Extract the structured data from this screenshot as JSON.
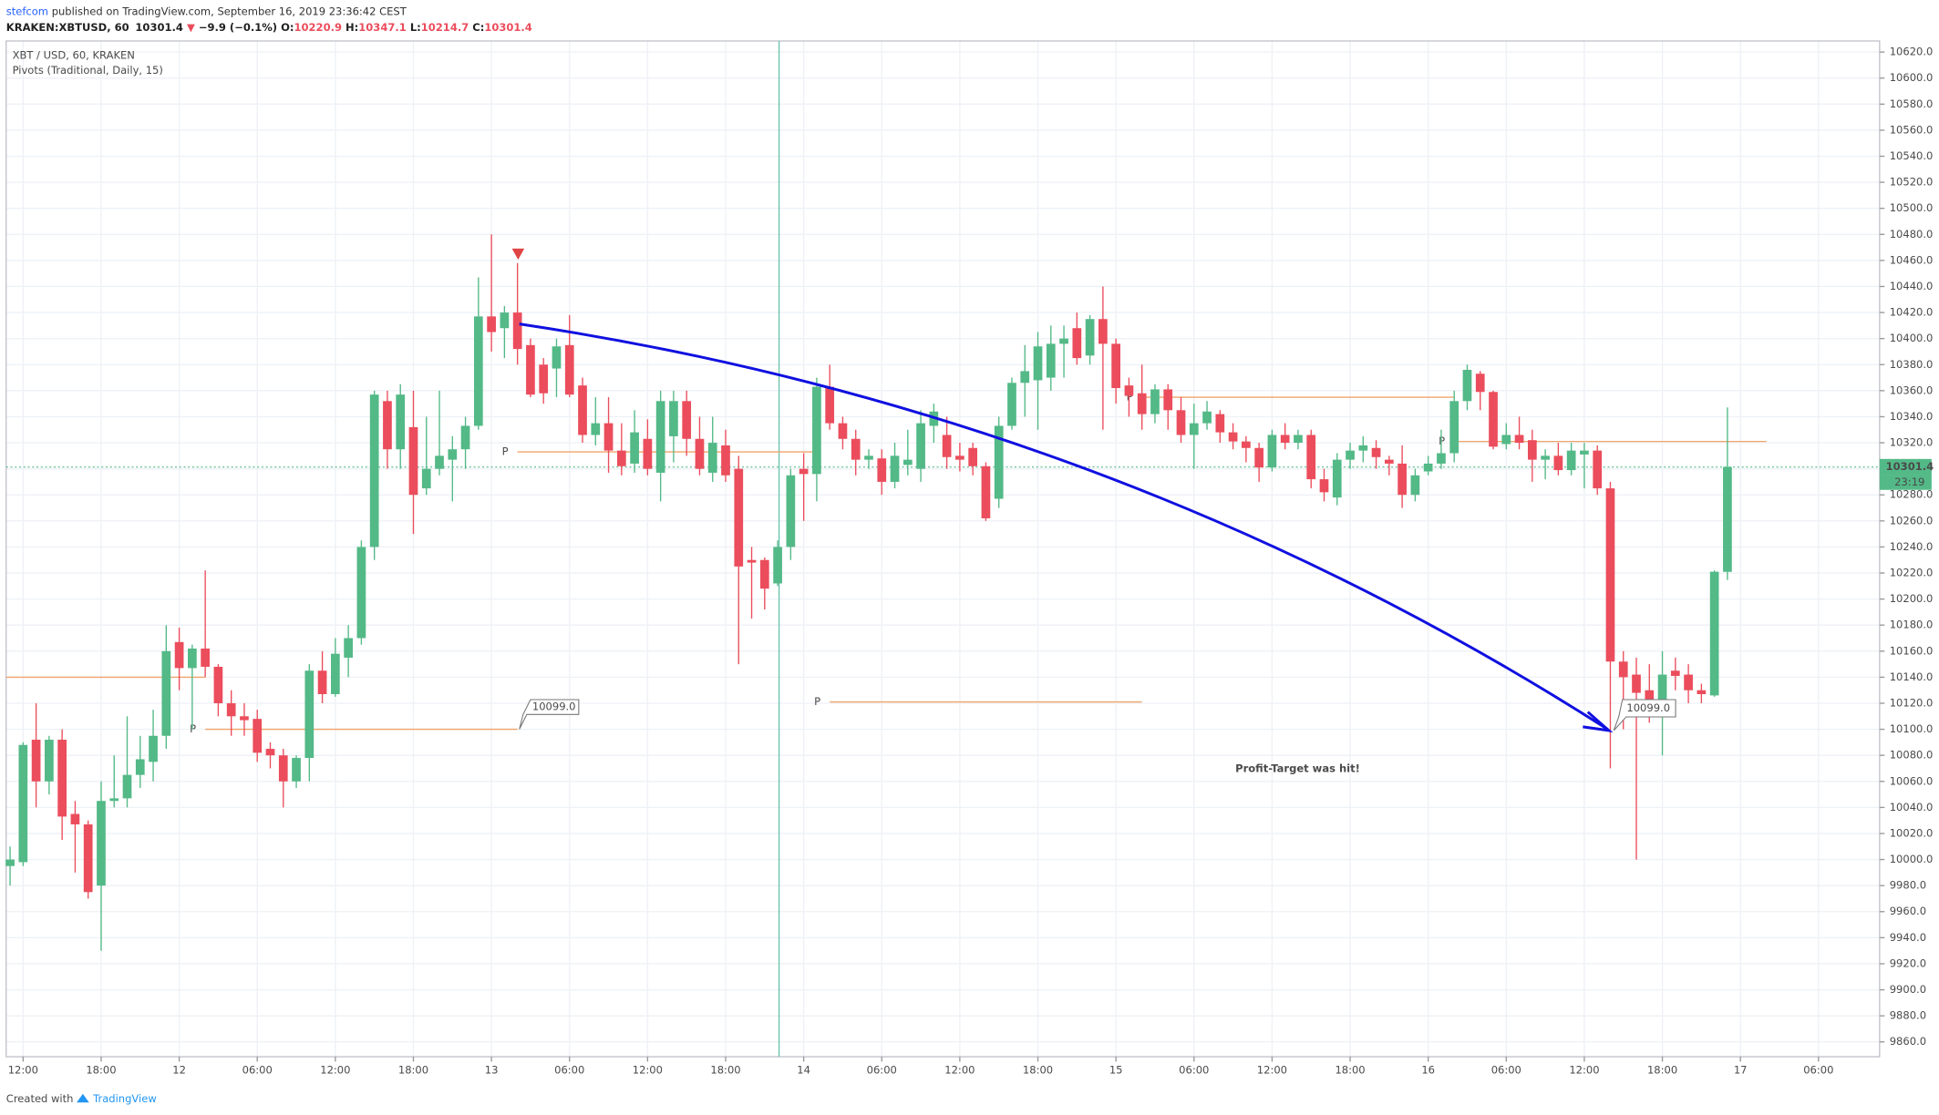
{
  "header": {
    "author": "stefcom",
    "published": " published on TradingView.com, September 16, 2019 23:36:42 CEST",
    "symbol": "KRAKEN:XBTUSD, 60",
    "last": "10301.4",
    "arrow": "▼",
    "change": "−9.9 (−0.1%)",
    "ohlc": [
      {
        "label": "O:",
        "value": "10220.9"
      },
      {
        "label": "H:",
        "value": "10347.1"
      },
      {
        "label": "L:",
        "value": "10214.7"
      },
      {
        "label": "C:",
        "value": "10301.4"
      }
    ]
  },
  "legend": [
    "XBT / USD, 60, KRAKEN",
    "Pivots (Traditional, Daily, 15)"
  ],
  "annotations": {
    "callout_1": "10099.0",
    "callout_2": "10099.0",
    "note": "Profit-Target was hit!"
  },
  "footer": {
    "text": "Created with",
    "brand": "TradingView"
  },
  "chart_data": {
    "type": "candlestick",
    "up_color": "#53b987",
    "down_color": "#eb4d5c",
    "open": [
      9995,
      9998,
      10092,
      10060,
      10092,
      10035,
      10027,
      9980,
      10045,
      10047,
      10065,
      10075,
      10095,
      10167,
      10147,
      10162,
      10148,
      10120,
      10110,
      10108,
      10085,
      10080,
      10060,
      10078,
      10145,
      10127,
      10155,
      10170,
      10240,
      10352,
      10315,
      10332,
      10285,
      10300,
      10307,
      10315,
      10333,
      10417,
      10408,
      10420,
      10395,
      10380,
      10377,
      10395,
      10364,
      10326,
      10335,
      10314,
      10304,
      10323,
      10297,
      10325,
      10352,
      10323,
      10297,
      10318,
      10300,
      10230,
      10230,
      10212,
      10240,
      10300,
      10296,
      10363,
      10335,
      10323,
      10307,
      10308,
      10290,
      10303,
      10300,
      10333,
      10326,
      10310,
      10316,
      10302,
      10277,
      10333,
      10366,
      10368,
      10370,
      10396,
      10408,
      10387,
      10415,
      10396,
      10364,
      10358,
      10342,
      10361,
      10345,
      10326,
      10335,
      10342,
      10328,
      10321,
      10316,
      10301,
      10326,
      10320,
      10326,
      10292,
      10278,
      10307,
      10314,
      10316,
      10307,
      10304,
      10280,
      10298,
      10304,
      10312,
      10352,
      10373,
      10359,
      10319,
      10326,
      10322,
      10307,
      10310,
      10299,
      10311,
      10314,
      10285,
      10152,
      10142,
      10130,
      10117,
      10145,
      10142,
      10130,
      10126,
      10220.9
    ],
    "high": [
      10010,
      10090,
      10120,
      10095,
      10100,
      10045,
      10030,
      10060,
      10080,
      10110,
      10095,
      10115,
      10180,
      10178,
      10165,
      10222,
      10150,
      10130,
      10120,
      10115,
      10090,
      10085,
      10080,
      10150,
      10160,
      10170,
      10180,
      10245,
      10360,
      10360,
      10365,
      10360,
      10340,
      10360,
      10325,
      10340,
      10447,
      10480,
      10425,
      10458,
      10400,
      10385,
      10400,
      10418,
      10370,
      10355,
      10355,
      10335,
      10345,
      10338,
      10360,
      10360,
      10360,
      10340,
      10340,
      10330,
      10310,
      10240,
      10232,
      10245,
      10300,
      10312,
      10370,
      10380,
      10340,
      10330,
      10315,
      10315,
      10320,
      10330,
      10345,
      10350,
      10340,
      10320,
      10320,
      10305,
      10340,
      10370,
      10395,
      10405,
      10410,
      10410,
      10420,
      10418,
      10440,
      10400,
      10370,
      10380,
      10365,
      10365,
      10355,
      10350,
      10352,
      10345,
      10335,
      10325,
      10320,
      10330,
      10335,
      10330,
      10330,
      10300,
      10312,
      10320,
      10325,
      10322,
      10310,
      10318,
      10300,
      10310,
      10330,
      10360,
      10380,
      10375,
      10360,
      10335,
      10340,
      10330,
      10315,
      10320,
      10320,
      10320,
      10318,
      10290,
      10160,
      10155,
      10150,
      10160,
      10155,
      10150,
      10135,
      10222,
      10347.1
    ],
    "low": [
      9980,
      9995,
      10040,
      10050,
      10015,
      9990,
      9970,
      9930,
      10040,
      10040,
      10055,
      10060,
      10085,
      10130,
      10100,
      10140,
      10110,
      10095,
      10095,
      10075,
      10070,
      10040,
      10055,
      10060,
      10120,
      10125,
      10140,
      10165,
      10230,
      10300,
      10300,
      10250,
      10280,
      10295,
      10275,
      10300,
      10330,
      10390,
      10385,
      10380,
      10355,
      10350,
      10355,
      10355,
      10320,
      10318,
      10297,
      10295,
      10297,
      10295,
      10275,
      10305,
      10310,
      10295,
      10290,
      10290,
      10150,
      10185,
      10192,
      10210,
      10230,
      10260,
      10275,
      10330,
      10315,
      10295,
      10300,
      10280,
      10285,
      10295,
      10290,
      10320,
      10300,
      10298,
      10295,
      10260,
      10270,
      10330,
      10340,
      10330,
      10360,
      10370,
      10380,
      10380,
      10330,
      10350,
      10340,
      10330,
      10335,
      10330,
      10320,
      10300,
      10330,
      10320,
      10315,
      10305,
      10290,
      10298,
      10315,
      10315,
      10285,
      10275,
      10272,
      10300,
      10305,
      10300,
      10295,
      10270,
      10275,
      10295,
      10300,
      10305,
      10345,
      10345,
      10315,
      10315,
      10315,
      10290,
      10292,
      10295,
      10295,
      10285,
      10280,
      10070,
      10100,
      10000,
      10105,
      10080,
      10130,
      10120,
      10120,
      10125,
      10214.7
    ],
    "close": [
      10000,
      10088,
      10060,
      10092,
      10033,
      10027,
      9975,
      10045,
      10047,
      10065,
      10077,
      10095,
      10160,
      10147,
      10162,
      10148,
      10120,
      10110,
      10107,
      10082,
      10080,
      10060,
      10078,
      10145,
      10127,
      10158,
      10170,
      10240,
      10357,
      10315,
      10357,
      10280,
      10300,
      10310,
      10315,
      10333,
      10417,
      10405,
      10420,
      10392,
      10357,
      10358,
      10394,
      10357,
      10326,
      10335,
      10314,
      10302,
      10328,
      10300,
      10352,
      10352,
      10323,
      10300,
      10320,
      10295,
      10225,
      10228,
      10208,
      10240,
      10295,
      10296,
      10363,
      10335,
      10323,
      10307,
      10310,
      10290,
      10310,
      10307,
      10335,
      10344,
      10309,
      10307,
      10302,
      10262,
      10333,
      10366,
      10375,
      10394,
      10396,
      10400,
      10385,
      10415,
      10396,
      10362,
      10356,
      10342,
      10361,
      10345,
      10326,
      10335,
      10344,
      10328,
      10321,
      10316,
      10301,
      10326,
      10320,
      10326,
      10292,
      10282,
      10307,
      10314,
      10318,
      10309,
      10304,
      10280,
      10295,
      10304,
      10312,
      10352,
      10376,
      10359,
      10317,
      10326,
      10320,
      10307,
      10310,
      10299,
      10314,
      10314,
      10285,
      10152,
      10140,
      10128,
      10117,
      10142,
      10141,
      10130,
      10127,
      10221,
      10301.4
    ],
    "last_price": 10301.4,
    "countdown": "23:19",
    "last_color": "#53b987",
    "pivots": {
      "label": "P",
      "color": "#f0a36a",
      "levels": [
        {
          "value": 10140,
          "start": -0.3,
          "end": 15
        },
        {
          "value": 10100,
          "start": 15,
          "end": 39
        },
        {
          "value": 10313,
          "start": 39,
          "end": 62
        },
        {
          "value": 10121,
          "start": 63,
          "end": 87
        },
        {
          "value": 10355,
          "start": 87,
          "end": 111
        },
        {
          "value": 10321,
          "start": 111,
          "end": 135
        }
      ]
    },
    "xlim": [
      -0.3,
      143.7
    ],
    "ylim": [
      9848.6,
      10628.5
    ],
    "grid": true,
    "xticks": [
      {
        "value": 1,
        "label": "12:00"
      },
      {
        "value": 7,
        "label": "18:00"
      },
      {
        "value": 13,
        "label": "12"
      },
      {
        "value": 19,
        "label": "06:00"
      },
      {
        "value": 25,
        "label": "12:00"
      },
      {
        "value": 31,
        "label": "18:00"
      },
      {
        "value": 37,
        "label": "13"
      },
      {
        "value": 43,
        "label": "06:00"
      },
      {
        "value": 49,
        "label": "12:00"
      },
      {
        "value": 55,
        "label": "18:00"
      },
      {
        "value": 61,
        "label": "14"
      },
      {
        "value": 67,
        "label": "06:00"
      },
      {
        "value": 73,
        "label": "12:00"
      },
      {
        "value": 79,
        "label": "18:00"
      },
      {
        "value": 85,
        "label": "15"
      },
      {
        "value": 91,
        "label": "06:00"
      },
      {
        "value": 97,
        "label": "12:00"
      },
      {
        "value": 103,
        "label": "18:00"
      },
      {
        "value": 109,
        "label": "16"
      },
      {
        "value": 115,
        "label": "06:00"
      },
      {
        "value": 121,
        "label": "12:00"
      },
      {
        "value": 127,
        "label": "18:00"
      },
      {
        "value": 133,
        "label": "17"
      },
      {
        "value": 139,
        "label": "06:00"
      }
    ],
    "yticks": [
      {
        "value": 9860,
        "label": "9860.0"
      },
      {
        "value": 9880,
        "label": "9880.0"
      },
      {
        "value": 9900,
        "label": "9900.0"
      },
      {
        "value": 9920,
        "label": "9920.0"
      },
      {
        "value": 9940,
        "label": "9940.0"
      },
      {
        "value": 9960,
        "label": "9960.0"
      },
      {
        "value": 9980,
        "label": "9980.0"
      },
      {
        "value": 10000,
        "label": "10000.0"
      },
      {
        "value": 10020,
        "label": "10020.0"
      },
      {
        "value": 10040,
        "label": "10040.0"
      },
      {
        "value": 10060,
        "label": "10060.0"
      },
      {
        "value": 10080,
        "label": "10080.0"
      },
      {
        "value": 10100,
        "label": "10100.0"
      },
      {
        "value": 10120,
        "label": "10120.0"
      },
      {
        "value": 10140,
        "label": "10140.0"
      },
      {
        "value": 10160,
        "label": "10160.0"
      },
      {
        "value": 10180,
        "label": "10180.0"
      },
      {
        "value": 10200,
        "label": "10200.0"
      },
      {
        "value": 10220,
        "label": "10220.0"
      },
      {
        "value": 10240,
        "label": "10240.0"
      },
      {
        "value": 10260,
        "label": "10260.0"
      },
      {
        "value": 10280,
        "label": "10280.0"
      },
      {
        "value": 10300,
        "label": "10300.0"
      },
      {
        "value": 10320,
        "label": "10320.0"
      },
      {
        "value": 10340,
        "label": "10340.0"
      },
      {
        "value": 10360,
        "label": "10360.0"
      },
      {
        "value": 10380,
        "label": "10380.0"
      },
      {
        "value": 10400,
        "label": "10400.0"
      },
      {
        "value": 10420,
        "label": "10420.0"
      },
      {
        "value": 10440,
        "label": "10440.0"
      },
      {
        "value": 10460,
        "label": "10460.0"
      },
      {
        "value": 10480,
        "label": "10480.0"
      },
      {
        "value": 10500,
        "label": "10500.0"
      },
      {
        "value": 10520,
        "label": "10520.0"
      },
      {
        "value": 10540,
        "label": "10540.0"
      },
      {
        "value": 10560,
        "label": "10560.0"
      },
      {
        "value": 10580,
        "label": "10580.0"
      },
      {
        "value": 10600,
        "label": "10600.0"
      },
      {
        "value": 10620,
        "label": "10620.0"
      }
    ]
  }
}
